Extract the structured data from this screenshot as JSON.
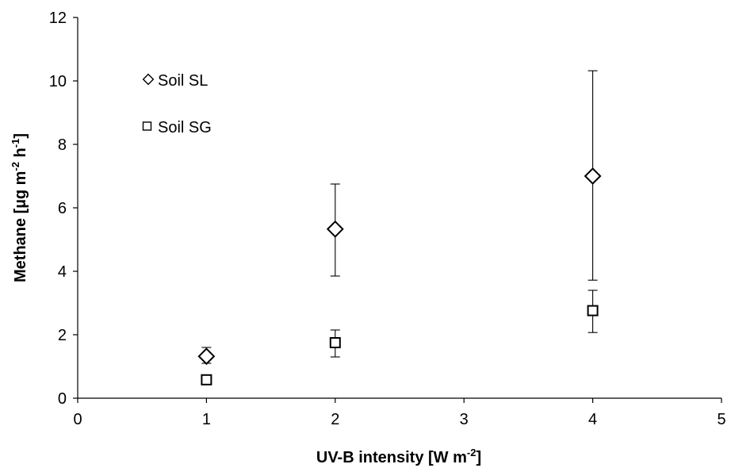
{
  "chart_data": {
    "type": "scatter",
    "title": "",
    "xlabel": {
      "main": "UV-B intensity [W m",
      "sup": "-2",
      "end": "]"
    },
    "ylabel": {
      "main": "Methane [µg m",
      "sup1": "-2",
      "mid": " h",
      "sup2": "-1",
      "end": "]"
    },
    "xlim": [
      0,
      5
    ],
    "ylim": [
      0,
      12
    ],
    "xticks": [
      0,
      1,
      2,
      3,
      4,
      5
    ],
    "yticks": [
      0,
      2,
      4,
      6,
      8,
      10,
      12
    ],
    "grid": false,
    "legend_position": "top-left",
    "series": [
      {
        "name": "Soil SL",
        "marker": "diamond",
        "x": [
          1,
          2,
          4
        ],
        "y": [
          1.32,
          5.33,
          7.0
        ],
        "error_low": [
          1.1,
          3.85,
          3.72
        ],
        "error_high": [
          1.6,
          6.75,
          10.32
        ]
      },
      {
        "name": "Soil SG",
        "marker": "square",
        "x": [
          1,
          2,
          4
        ],
        "y": [
          0.58,
          1.75,
          2.76
        ],
        "error_low": [
          0.48,
          1.3,
          2.07
        ],
        "error_high": [
          0.68,
          2.15,
          3.4
        ]
      }
    ]
  }
}
